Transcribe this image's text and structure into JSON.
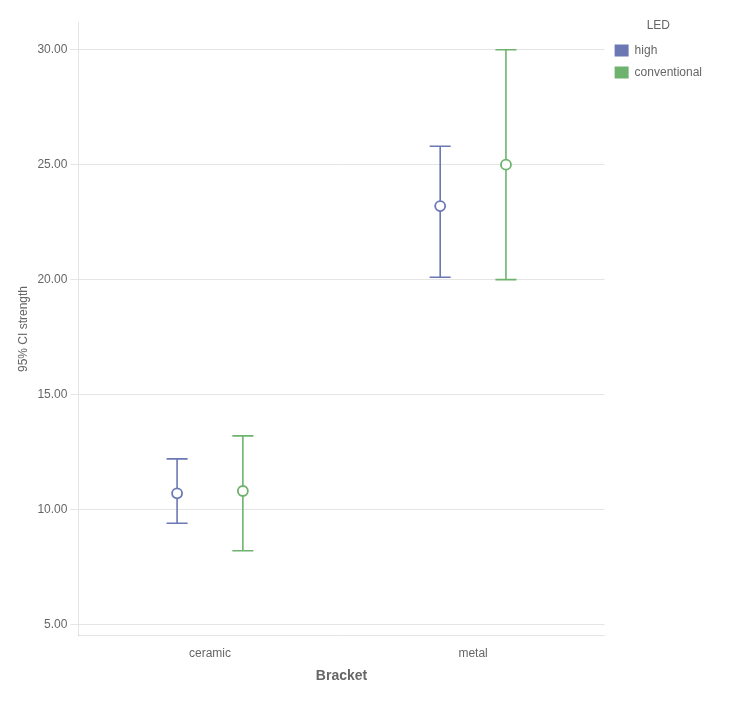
{
  "chart_data": {
    "type": "errorbar",
    "categories": [
      "ceramic",
      "metal"
    ],
    "series": [
      {
        "name": "high",
        "color": "#6b78b4",
        "values": [
          10.7,
          23.2
        ],
        "ci_lower": [
          9.4,
          20.1
        ],
        "ci_upper": [
          12.2,
          25.8
        ]
      },
      {
        "name": "conventional",
        "color": "#6db36d",
        "values": [
          10.8,
          25.0
        ],
        "ci_lower": [
          8.2,
          20.0
        ],
        "ci_upper": [
          13.2,
          30.0
        ]
      }
    ],
    "xlabel": "Bracket",
    "ylabel": "95% CI strength",
    "legend_title": "LED",
    "legend": "right",
    "ylim": [
      4.5,
      31.2
    ],
    "yticks": [
      {
        "value": 5.0,
        "label": "5.00"
      },
      {
        "value": 10.0,
        "label": "10.00"
      },
      {
        "value": 15.0,
        "label": "15.00"
      },
      {
        "value": 20.0,
        "label": "20.00"
      },
      {
        "value": 25.0,
        "label": "25.00"
      },
      {
        "value": 30.0,
        "label": "30.00"
      }
    ],
    "grid": true
  }
}
